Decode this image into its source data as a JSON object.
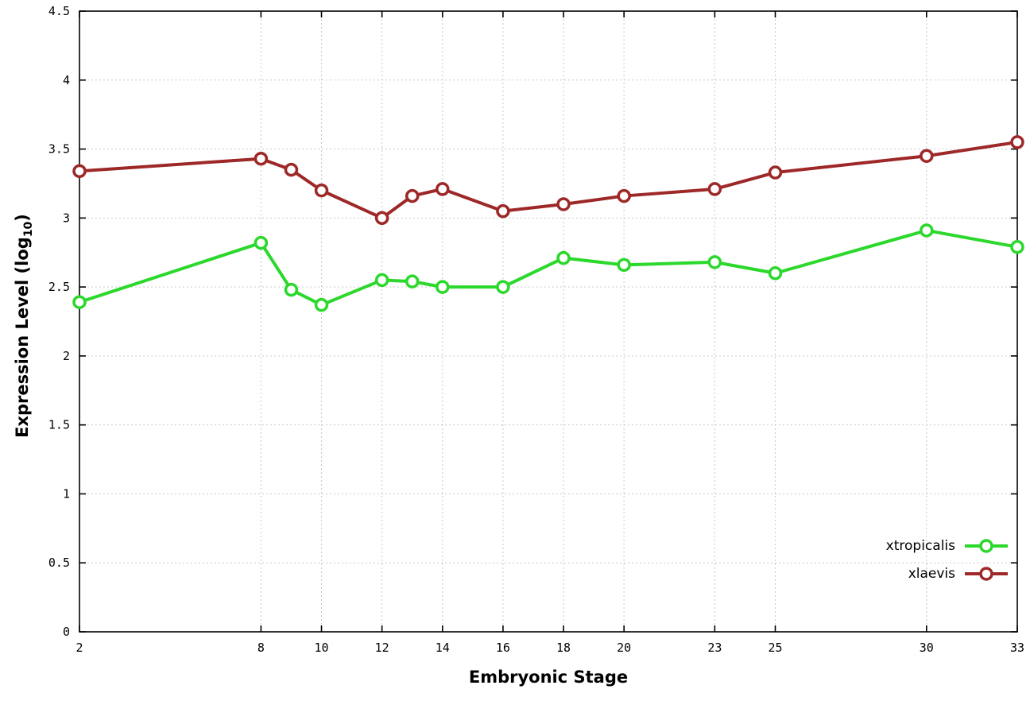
{
  "chart_data": {
    "type": "line",
    "title": "",
    "xlabel": "Embryonic Stage",
    "ylabel": "Expression Level (log10)",
    "ylabel_parts": {
      "prefix": "Expression Level (log",
      "sub": "10",
      "suffix": ")"
    },
    "xlim": [
      2,
      33
    ],
    "ylim": [
      0,
      4.5
    ],
    "xticks": [
      2,
      8,
      10,
      12,
      14,
      16,
      18,
      20,
      23,
      25,
      30,
      33
    ],
    "yticks": [
      0,
      0.5,
      1,
      1.5,
      2,
      2.5,
      3,
      3.5,
      4,
      4.5
    ],
    "grid": true,
    "legend_position": "bottom-right",
    "x": [
      2,
      8,
      9,
      10,
      12,
      13,
      14,
      16,
      18,
      20,
      23,
      25,
      30,
      33
    ],
    "series": [
      {
        "name": "xtropicalis",
        "color": "#2bd82b",
        "values": [
          2.39,
          2.82,
          2.48,
          2.37,
          2.55,
          2.54,
          2.5,
          2.5,
          2.71,
          2.66,
          2.68,
          2.6,
          2.91,
          2.79
        ]
      },
      {
        "name": "xlaevis",
        "color": "#9e2828",
        "values": [
          3.34,
          3.43,
          3.35,
          3.2,
          3.0,
          3.16,
          3.21,
          3.05,
          3.1,
          3.16,
          3.21,
          3.33,
          3.45,
          3.55
        ]
      }
    ]
  }
}
